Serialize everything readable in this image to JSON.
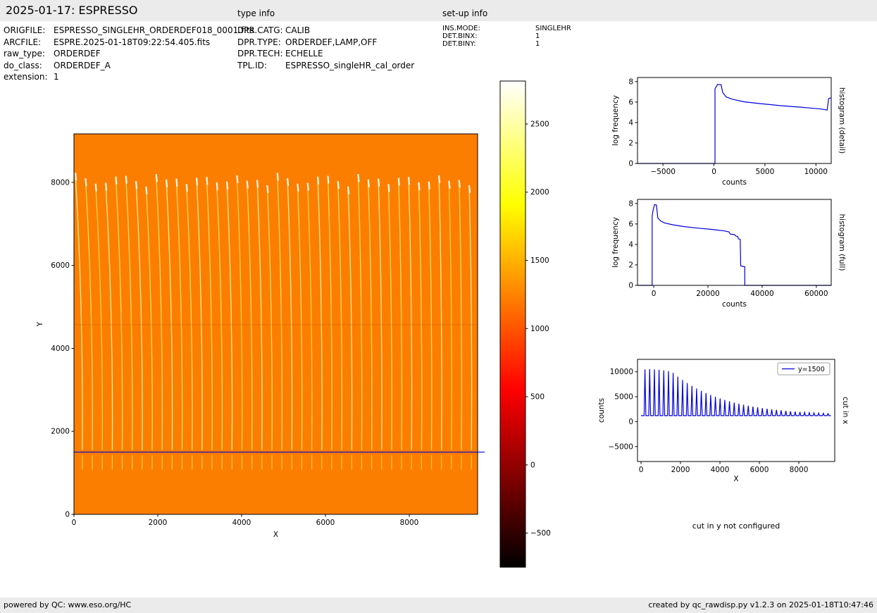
{
  "header": {
    "title": "2025-01-17: ESPRESSO",
    "type_info_label": "type info",
    "setup_info_label": "set-up info"
  },
  "metadata": {
    "col1": [
      {
        "label": "ORIGFILE:",
        "value": "ESPRESSO_SINGLEHR_ORDERDEF018_0001.fits"
      },
      {
        "label": "ARCFILE:",
        "value": "ESPRE.2025-01-18T09:22:54.405.fits"
      },
      {
        "label": "raw_type:",
        "value": "ORDERDEF"
      },
      {
        "label": "do_class:",
        "value": "ORDERDEF_A"
      },
      {
        "label": "extension:",
        "value": "1"
      }
    ],
    "col2": [
      {
        "label": "DPR.CATG:",
        "value": "CALIB"
      },
      {
        "label": "DPR.TYPE:",
        "value": "ORDERDEF,LAMP,OFF"
      },
      {
        "label": "DPR.TECH:",
        "value": "ECHELLE"
      },
      {
        "label": "TPL.ID:",
        "value": "ESPRESSO_singleHR_cal_order"
      }
    ],
    "col3": [
      {
        "label": "INS.MODE:",
        "value": "SINGLEHR"
      },
      {
        "label": "DET.BINX:",
        "value": "1"
      },
      {
        "label": "DET.BINY:",
        "value": "1"
      }
    ]
  },
  "notes": {
    "cut_y": "cut in y not configured"
  },
  "footer": {
    "left": "powered by QC: www.eso.org/HC",
    "right": "created by qc_rawdisp.py v1.2.3 on 2025-01-18T10:47:46"
  },
  "chart_data": [
    {
      "type": "heatmap",
      "name": "raw_frame",
      "xlabel": "X",
      "ylabel": "Y",
      "xlim": [
        0,
        9630
      ],
      "ylim": [
        0,
        9170
      ],
      "xticks": [
        0,
        2000,
        4000,
        6000,
        8000
      ],
      "xtick_labels": [
        "0",
        "2000",
        "4000",
        "6000",
        "8000"
      ],
      "yticks": [
        0,
        2000,
        4000,
        6000,
        8000
      ],
      "ytick_labels": [
        "0",
        "2000",
        "4000",
        "6000",
        "8000"
      ],
      "bg_value": 1000,
      "bg_color": "#fc7e00",
      "order_x": [
        200,
        438,
        676,
        914,
        1152,
        1390,
        1628,
        1866,
        2104,
        2342,
        2580,
        2818,
        3056,
        3294,
        3532,
        3770,
        4008,
        4246,
        4484,
        4722,
        4960,
        5198,
        5436,
        5674,
        5912,
        6150,
        6388,
        6626,
        6864,
        7102,
        7340,
        7578,
        7816,
        8054,
        8292,
        8530,
        8768,
        9006,
        9244,
        9482
      ],
      "trace_y_range": [
        1550,
        8230
      ],
      "lower_dash_y_range": [
        1080,
        1430
      ],
      "cut_line_y": 1500,
      "cut_line_color": "#0000dd",
      "seam_y": 4570,
      "trace_color": "#ffd95e",
      "trace_tip_color": "#fffbe8",
      "colorbar": {
        "range": [
          -750,
          2815
        ],
        "ticks": [
          2500,
          2000,
          1500,
          1000,
          500,
          0,
          -500
        ],
        "tick_labels": [
          "2500",
          "2000",
          "1500",
          "1000",
          "500",
          "0",
          "−500"
        ],
        "stops": [
          {
            "offset": 0,
            "color": "#ffffff"
          },
          {
            "offset": 0.254,
            "color": "#ffff00"
          },
          {
            "offset": 0.635,
            "color": "#ff0000"
          },
          {
            "offset": 1,
            "color": "#000000"
          }
        ]
      }
    },
    {
      "type": "line",
      "name": "histogram_detail",
      "xlabel": "counts",
      "ylabel": "log frequency",
      "rlabel": "histogram (detail)",
      "xlim": [
        -7500,
        11500
      ],
      "ylim": [
        0,
        8.4
      ],
      "xticks": [
        -5000,
        0,
        5000,
        10000
      ],
      "xtick_labels": [
        "−5000",
        "0",
        "5000",
        "10000"
      ],
      "yticks": [
        0,
        2,
        4,
        6,
        8
      ],
      "ytick_labels": [
        "0",
        "2",
        "4",
        "6",
        "8"
      ],
      "color": "#0000dd",
      "points": [
        [
          -7500,
          0
        ],
        [
          100,
          0
        ],
        [
          100,
          7.3
        ],
        [
          350,
          7.72
        ],
        [
          700,
          7.7
        ],
        [
          850,
          6.95
        ],
        [
          1200,
          6.5
        ],
        [
          1800,
          6.28
        ],
        [
          3000,
          6.02
        ],
        [
          4500,
          5.85
        ],
        [
          6500,
          5.65
        ],
        [
          8500,
          5.5
        ],
        [
          10500,
          5.32
        ],
        [
          11100,
          5.22
        ],
        [
          11250,
          6.35
        ],
        [
          11500,
          6.42
        ]
      ]
    },
    {
      "type": "line",
      "name": "histogram_full",
      "xlabel": "counts",
      "ylabel": "log frequency",
      "rlabel": "histogram (full)",
      "xlim": [
        -6000,
        65500
      ],
      "ylim": [
        0,
        8.4
      ],
      "xticks": [
        0,
        20000,
        40000,
        60000
      ],
      "xtick_labels": [
        "0",
        "20000",
        "40000",
        "60000"
      ],
      "yticks": [
        0,
        2,
        4,
        6,
        8
      ],
      "ytick_labels": [
        "0",
        "2",
        "4",
        "6",
        "8"
      ],
      "color": "#0000dd",
      "points": [
        [
          -6000,
          0
        ],
        [
          -600,
          0
        ],
        [
          -600,
          6.8
        ],
        [
          -200,
          7.4
        ],
        [
          300,
          7.9
        ],
        [
          1000,
          7.85
        ],
        [
          1500,
          6.6
        ],
        [
          2500,
          6.3
        ],
        [
          4000,
          6.1
        ],
        [
          7000,
          5.92
        ],
        [
          11000,
          5.75
        ],
        [
          16000,
          5.6
        ],
        [
          21000,
          5.48
        ],
        [
          26000,
          5.32
        ],
        [
          27800,
          5.22
        ],
        [
          28200,
          5.02
        ],
        [
          29800,
          4.95
        ],
        [
          30300,
          4.83
        ],
        [
          31000,
          4.78
        ],
        [
          31200,
          4.55
        ],
        [
          31900,
          4.5
        ],
        [
          32100,
          1.9
        ],
        [
          33600,
          1.82
        ],
        [
          33600,
          0
        ],
        [
          65500,
          0
        ]
      ]
    },
    {
      "type": "line",
      "name": "cut_in_x",
      "xlabel": "X",
      "ylabel": "counts",
      "rlabel": "cut in x",
      "legend": "y=1500",
      "xlim": [
        -180,
        9820
      ],
      "ylim": [
        -8000,
        12500
      ],
      "xticks": [
        0,
        2000,
        4000,
        6000,
        8000
      ],
      "xtick_labels": [
        "0",
        "2000",
        "4000",
        "6000",
        "8000"
      ],
      "yticks": [
        -5000,
        0,
        5000,
        10000
      ],
      "ytick_labels": [
        "−5000",
        "0",
        "5000",
        "10000"
      ],
      "color": "#0000dd",
      "baseline": 1200,
      "spike_halfwidth": 45,
      "x": [
        200,
        438,
        676,
        914,
        1152,
        1390,
        1628,
        1866,
        2104,
        2342,
        2580,
        2818,
        3056,
        3294,
        3532,
        3770,
        4008,
        4246,
        4484,
        4722,
        4960,
        5198,
        5436,
        5674,
        5912,
        6150,
        6388,
        6626,
        6864,
        7102,
        7340,
        7578,
        7816,
        8054,
        8292,
        8530,
        8768,
        9006,
        9244,
        9482
      ],
      "heights": [
        10500,
        10550,
        10480,
        10420,
        10300,
        10120,
        9780,
        9040,
        8350,
        7730,
        7170,
        6650,
        6170,
        5740,
        5350,
        4990,
        4660,
        4360,
        4090,
        3830,
        3610,
        3400,
        3200,
        3030,
        2870,
        2720,
        2590,
        2470,
        2370,
        2260,
        2170,
        2080,
        2010,
        1930,
        1880,
        1810,
        1760,
        1710,
        1670,
        1620
      ]
    }
  ]
}
